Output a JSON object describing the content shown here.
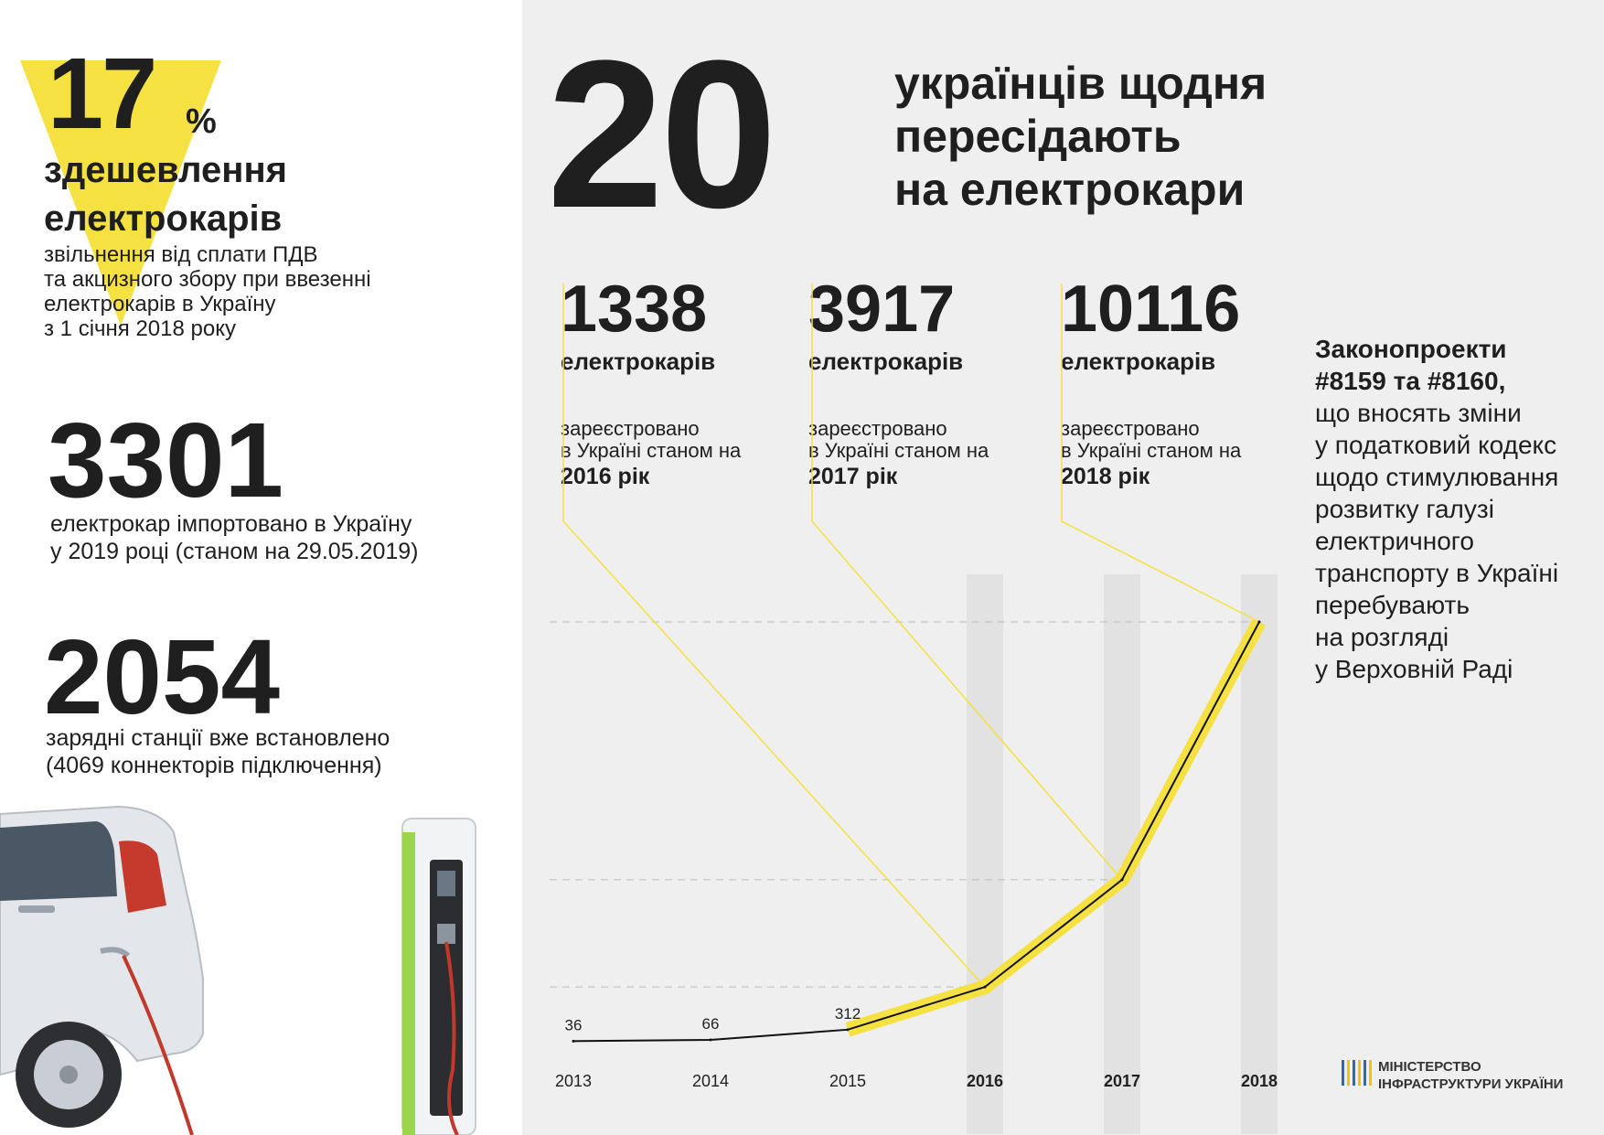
{
  "colors": {
    "accent": "#f5e142",
    "background_right": "#efefef",
    "text": "#1f1f1f",
    "car_cable": "#c0392b"
  },
  "left": {
    "stat_percent": {
      "value": "17",
      "sign": "%",
      "title_line1": "здешевлення",
      "title_line2": "електрокарів",
      "desc": [
        "звільнення від сплати ПДВ",
        "та акцизного збору при ввезенні",
        "електрокарів в Україну",
        "з 1 січня 2018 року"
      ]
    },
    "stat_imported": {
      "value": "3301",
      "desc": [
        "електрокар імпортовано в Україну",
        "у 2019 році (станом на 29.05.2019)"
      ]
    },
    "stat_stations": {
      "value": "2054",
      "desc": [
        "зарядні станції вже встановлено",
        "(4069 коннекторів підключення)"
      ]
    }
  },
  "headline": {
    "number": "20",
    "line1": "українців щодня",
    "line2": "пересідають",
    "line3": "на електрокари"
  },
  "stats": [
    {
      "value": "1338",
      "unit": "електрокарів",
      "desc1": "зареєстровано",
      "desc2": "в Україні станом на",
      "year": "2016 рік"
    },
    {
      "value": "3917",
      "unit": "електрокарів",
      "desc1": "зареєстровано",
      "desc2": "в Україні станом на",
      "year": "2017 рік"
    },
    {
      "value": "10116",
      "unit": "електрокарів",
      "desc1": "зареєстровано",
      "desc2": "в Україні станом на",
      "year": "2018 рік"
    }
  ],
  "law": {
    "bold1": "Законопроекти",
    "bold2": "#8159 та #8160,",
    "lines": [
      "що вносять зміни",
      "у податковий кодекс",
      "щодо стимулювання",
      "розвитку галузі",
      "електричного",
      "транспорту в Україні",
      "перебувають",
      "на розгляді",
      "у Верховній Раді"
    ]
  },
  "ministry": {
    "line1": "МІНІСТЕРСТВО",
    "line2": "ІНФРАСТРУКТУРИ УКРАЇНИ"
  },
  "chart_data": {
    "type": "line",
    "title": "",
    "xlabel": "",
    "ylabel": "",
    "x": [
      "2013",
      "2014",
      "2015",
      "2016",
      "2017",
      "2018"
    ],
    "bold_x": [
      "2016",
      "2017",
      "2018"
    ],
    "values": [
      36,
      66,
      312,
      1338,
      3917,
      10116
    ],
    "labeled_values": [
      36,
      66,
      312
    ],
    "highlighted_from": "2015",
    "ylim": [
      0,
      10116
    ],
    "grid": false,
    "legend": "none"
  }
}
